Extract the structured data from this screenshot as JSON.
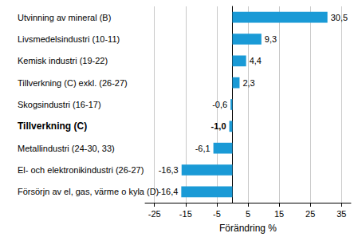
{
  "chart_data": {
    "type": "bar",
    "orientation": "horizontal",
    "categories": [
      "Utvinning av mineral (B)",
      "Livsmedelsindustri (10-11)",
      "Kemisk industri (19-22)",
      "Tillverkning (C) exkl. (26-27)",
      "Skogsindustri (16-17)",
      "Tillverkning (C)",
      "Metallindustri (24-30, 33)",
      "El- och elektronikindustri (26-27)",
      "Försörjn av el, gas, värme o kyla (D)"
    ],
    "values": [
      30.5,
      9.3,
      4.4,
      2.3,
      -0.6,
      -1.0,
      -6.1,
      -16.3,
      -16.4
    ],
    "value_labels": [
      "30,5",
      "9,3",
      "4,4",
      "2,3",
      "-0,6",
      "-1,0",
      "-6,1",
      "-16,3",
      "-16,4"
    ],
    "data_labels": true,
    "color": "#1a9ad6",
    "xlabel": "Förändring %",
    "xlim": [
      -28,
      38
    ],
    "xticks": [
      -25,
      -15,
      -5,
      5,
      15,
      25,
      35
    ],
    "grid": true
  }
}
